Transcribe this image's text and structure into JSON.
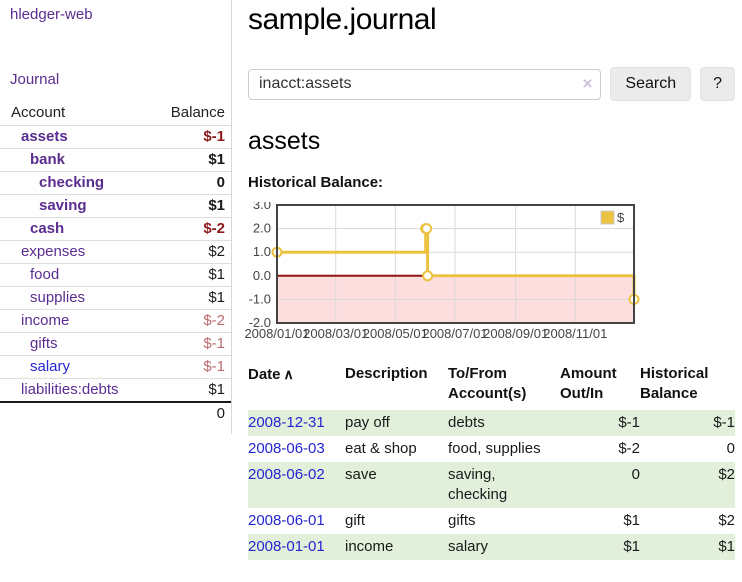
{
  "colors": {
    "link_purple": "#5b2d90",
    "link_blue": "#2525d2",
    "negative_strong": "#8f1a1a",
    "negative_soft": "#bd6a6e",
    "row_stripe_green": "#e2efdb",
    "series_gold": "#edc240"
  },
  "sidebar": {
    "brand": "hledger-web",
    "nav": {
      "journal_label": "Journal"
    },
    "table": {
      "account_header": "Account",
      "balance_header": "Balance"
    },
    "accounts": [
      {
        "name": "assets",
        "indent": 0,
        "bold": true,
        "link_color": "purple",
        "balance": "$-1",
        "balance_class": "neg-strong"
      },
      {
        "name": "bank",
        "indent": 1,
        "bold": true,
        "link_color": "purple",
        "balance": "$1",
        "balance_class": ""
      },
      {
        "name": "checking",
        "indent": 2,
        "bold": true,
        "link_color": "purple",
        "balance": "0",
        "balance_class": ""
      },
      {
        "name": "saving",
        "indent": 2,
        "bold": true,
        "link_color": "purple",
        "balance": "$1",
        "balance_class": ""
      },
      {
        "name": "cash",
        "indent": 1,
        "bold": true,
        "link_color": "purple",
        "balance": "$-2",
        "balance_class": "neg-strong"
      },
      {
        "name": "expenses",
        "indent": 0,
        "bold": false,
        "link_color": "purple",
        "balance": "$2",
        "balance_class": ""
      },
      {
        "name": "food",
        "indent": 1,
        "bold": false,
        "link_color": "purple",
        "balance": "$1",
        "balance_class": ""
      },
      {
        "name": "supplies",
        "indent": 1,
        "bold": false,
        "link_color": "purple",
        "balance": "$1",
        "balance_class": ""
      },
      {
        "name": "income",
        "indent": 0,
        "bold": false,
        "link_color": "purple",
        "balance": "$-2",
        "balance_class": "neg-soft"
      },
      {
        "name": "gifts",
        "indent": 1,
        "bold": false,
        "link_color": "purple",
        "balance": "$-1",
        "balance_class": "neg-soft"
      },
      {
        "name": "salary",
        "indent": 1,
        "bold": false,
        "link_color": "blue",
        "balance": "$-1",
        "balance_class": "neg-soft"
      },
      {
        "name": "liabilities:debts",
        "indent": 0,
        "bold": false,
        "link_color": "purple",
        "balance": "$1",
        "balance_class": ""
      }
    ],
    "total": "0"
  },
  "header": {
    "title": "sample.journal"
  },
  "search": {
    "query": "inacct:assets",
    "clear_icon": "×",
    "button_label": "Search",
    "help_label": "?"
  },
  "account_page": {
    "heading": "assets",
    "chart_label": "Historical Balance:"
  },
  "chart_data": {
    "type": "line",
    "step": true,
    "title": "Historical Balance:",
    "legend": [
      {
        "label": "$",
        "color": "#edc240"
      }
    ],
    "legend_position": "top-right",
    "grid": true,
    "x_range": [
      "2008-01-01",
      "2008-12-31"
    ],
    "ylim": [
      -2,
      3
    ],
    "y_ticks": [
      "3.0",
      "2.0",
      "1.0",
      "0.0",
      "-1.0",
      "-2.0"
    ],
    "x_ticks": [
      {
        "date": "2008-01-01",
        "label": "2008/01/01"
      },
      {
        "date": "2008-03-01",
        "label": "2008/03/01"
      },
      {
        "date": "2008-05-01",
        "label": "2008/05/01"
      },
      {
        "date": "2008-07-01",
        "label": "2008/07/01"
      },
      {
        "date": "2008-09-01",
        "label": "2008/09/01"
      },
      {
        "date": "2008-11-01",
        "label": "2008/11/01"
      }
    ],
    "series": [
      {
        "name": "$",
        "color": "#edc240",
        "marker_fill": "#ffffff",
        "points": [
          [
            "2008-01-01",
            1
          ],
          [
            "2008-06-01",
            2
          ],
          [
            "2008-06-02",
            2
          ],
          [
            "2008-06-03",
            0
          ],
          [
            "2008-12-31",
            -1
          ]
        ]
      }
    ],
    "grid_color": "#d9d9d9",
    "border_color": "#444444",
    "negative_fill": "#fcdede",
    "zero_line_color": "#8f1313",
    "tick_label_color": "#444444"
  },
  "register": {
    "columns": [
      {
        "label": "Date",
        "sort_indicator": "∧"
      },
      {
        "label": "Description",
        "label2": ""
      },
      {
        "label": "To/From",
        "label2": "Account(s)"
      },
      {
        "label": "Amount",
        "label2": "Out/In"
      },
      {
        "label": "Historical",
        "label2": "Balance"
      }
    ],
    "rows": [
      {
        "date": "2008-12-31",
        "description": "pay off",
        "accounts": "debts",
        "amount": "$-1",
        "amount_negative": true,
        "balance": "$-1",
        "balance_negative": true
      },
      {
        "date": "2008-06-03",
        "description": "eat & shop",
        "accounts": "food, supplies",
        "amount": "$-2",
        "amount_negative": true,
        "balance": "0",
        "balance_negative": false
      },
      {
        "date": "2008-06-02",
        "description": "save",
        "accounts": "saving,\nchecking",
        "amount": "0",
        "amount_negative": false,
        "balance": "$2",
        "balance_negative": false
      },
      {
        "date": "2008-06-01",
        "description": "gift",
        "accounts": "gifts",
        "amount": "$1",
        "amount_negative": false,
        "balance": "$2",
        "balance_negative": false
      },
      {
        "date": "2008-01-01",
        "description": "income",
        "accounts": "salary",
        "amount": "$1",
        "amount_negative": false,
        "balance": "$1",
        "balance_negative": false
      }
    ]
  }
}
